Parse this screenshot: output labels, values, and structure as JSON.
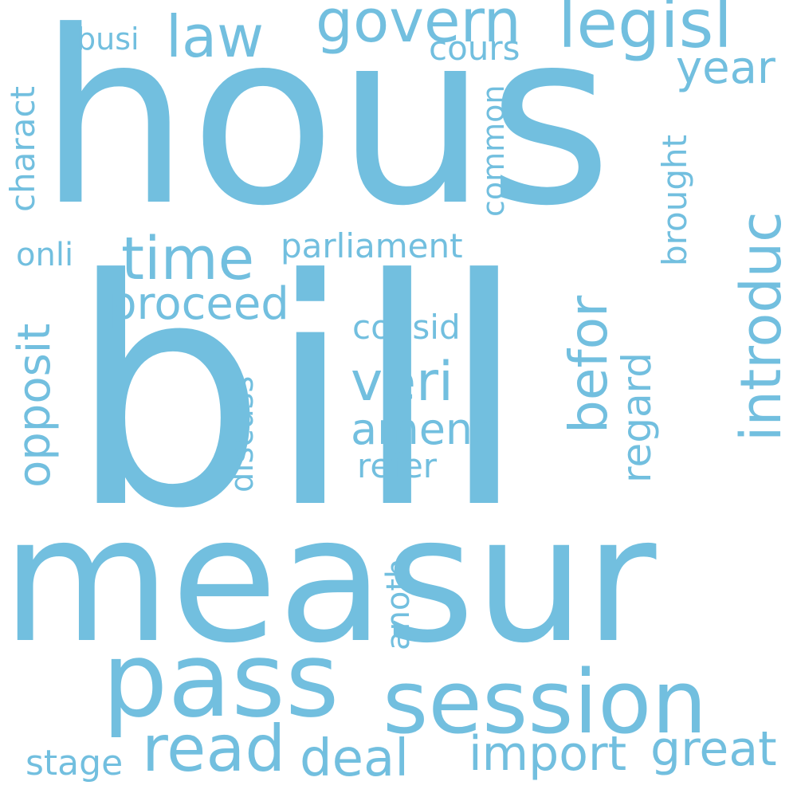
{
  "word_color": "#72bfdf",
  "background": "#ffffff",
  "words": {
    "hous": "hous",
    "bill": "bill",
    "measur": "measur",
    "pass": "pass",
    "session": "session",
    "govern": "govern",
    "legisl": "legisl",
    "law": "law",
    "busi": "busi",
    "cours": "cours",
    "year": "year",
    "charact": "charact",
    "common": "common",
    "brought": "brought",
    "introduc": "introduc",
    "time": "time",
    "parliament": "parliament",
    "onli": "onli",
    "proceed": "proceed",
    "befor": "befor",
    "opposit": "opposit",
    "consid": "consid",
    "regard": "regard",
    "veri": "veri",
    "discuss": "discuss",
    "amend": "amend",
    "refer": "refer",
    "anoth": "anoth",
    "read": "read",
    "deal": "deal",
    "stage": "stage",
    "import": "import",
    "great": "great"
  }
}
